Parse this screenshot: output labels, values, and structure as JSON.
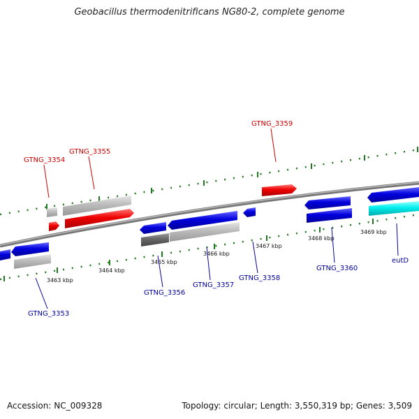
{
  "title": "Geobacillus thermodenitrificans NG80-2, complete genome",
  "footer": {
    "accession": "Accession: NC_009328",
    "topology": "Topology: circular; Length: 3,550,319 bp; Genes: 3,509"
  },
  "colors": {
    "forward_gene": "#ee0000",
    "reverse_gene": "#0000dd",
    "other_gene": "#bbbbbb",
    "dark_gene": "#666666",
    "highlight_gene": "#00eeee",
    "tick": "#227722",
    "axis": "#888888",
    "label_red": "#cc0000",
    "label_blue": "#000099"
  },
  "kbp_labels": [
    "3463 kbp",
    "3464 kbp",
    "3465 kbp",
    "3466 kbp",
    "3467 kbp",
    "3468 kbp",
    "3469 kbp"
  ],
  "gene_labels": {
    "forward": [
      "GTNG_3354",
      "GTNG_3355",
      "GTNG_3359"
    ],
    "reverse": [
      "GTNG_3353",
      "GTNG_3356",
      "GTNG_3357",
      "GTNG_3358",
      "GTNG_3360",
      "eutD"
    ]
  }
}
